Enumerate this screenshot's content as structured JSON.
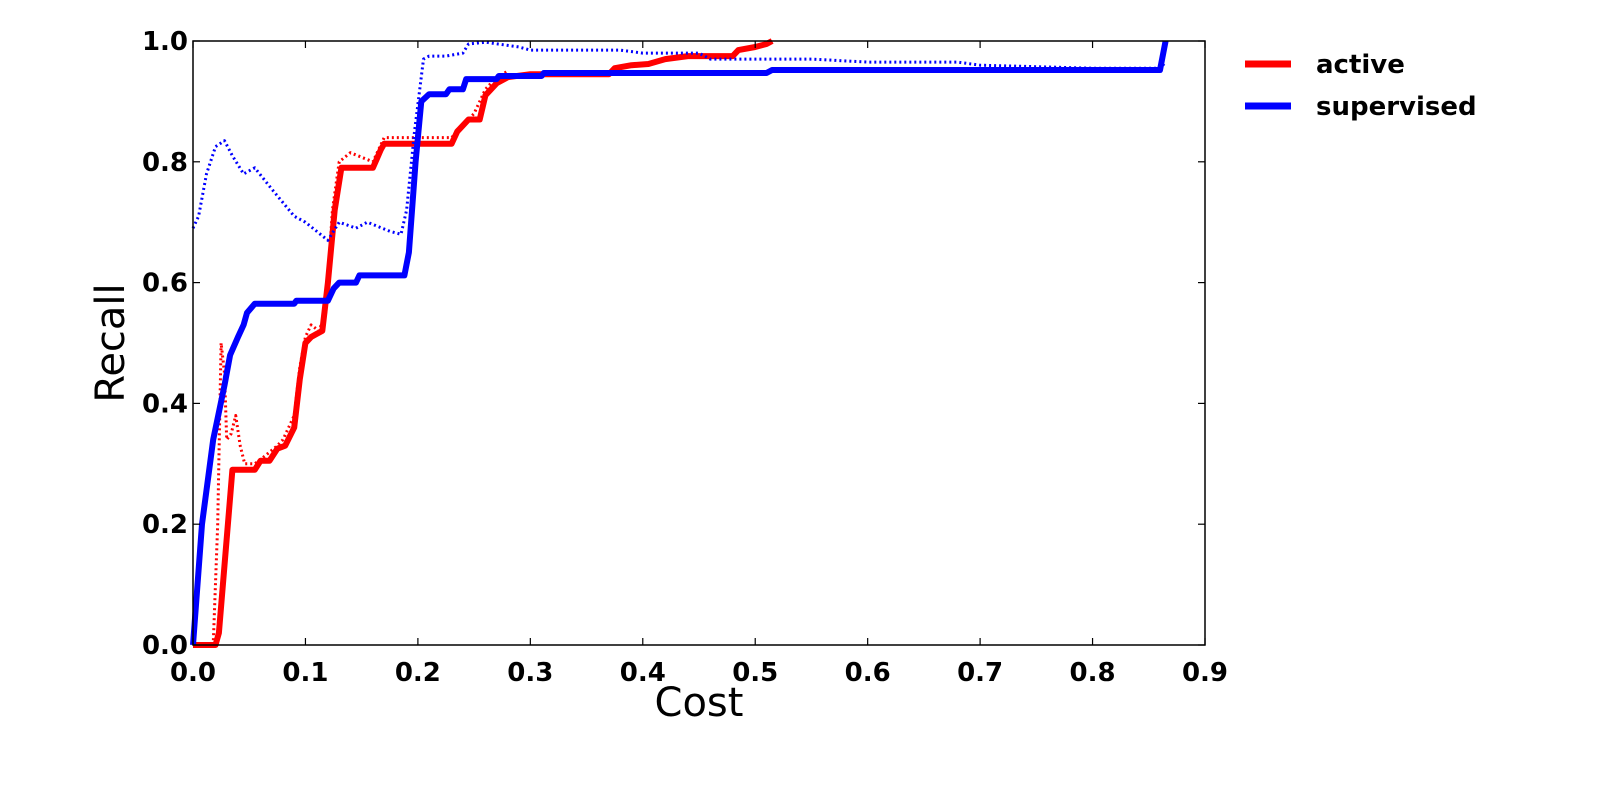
{
  "chart_data": {
    "type": "line",
    "title": "",
    "xlabel": "Cost",
    "ylabel": "Recall",
    "xlim": [
      0.0,
      0.9
    ],
    "ylim": [
      0.0,
      1.0
    ],
    "x_ticks": [
      "0.0",
      "0.1",
      "0.2",
      "0.3",
      "0.4",
      "0.5",
      "0.6",
      "0.7",
      "0.8",
      "0.9"
    ],
    "y_ticks": [
      "0.0",
      "0.2",
      "0.4",
      "0.6",
      "0.8",
      "1.0"
    ],
    "grid": false,
    "legend_position": "outside-top-right",
    "legend": [
      {
        "label": "active",
        "color": "#ff0000"
      },
      {
        "label": "supervised",
        "color": "#0000ff"
      }
    ],
    "series": [
      {
        "name": "active",
        "color": "#ff0000",
        "style": "solid",
        "points": [
          [
            0.0,
            0.0
          ],
          [
            0.02,
            0.0
          ],
          [
            0.023,
            0.02
          ],
          [
            0.035,
            0.29
          ],
          [
            0.055,
            0.29
          ],
          [
            0.06,
            0.305
          ],
          [
            0.068,
            0.305
          ],
          [
            0.075,
            0.325
          ],
          [
            0.082,
            0.33
          ],
          [
            0.09,
            0.36
          ],
          [
            0.095,
            0.44
          ],
          [
            0.1,
            0.5
          ],
          [
            0.105,
            0.51
          ],
          [
            0.11,
            0.515
          ],
          [
            0.115,
            0.52
          ],
          [
            0.12,
            0.6
          ],
          [
            0.126,
            0.72
          ],
          [
            0.132,
            0.79
          ],
          [
            0.16,
            0.79
          ],
          [
            0.167,
            0.82
          ],
          [
            0.17,
            0.83
          ],
          [
            0.23,
            0.83
          ],
          [
            0.235,
            0.85
          ],
          [
            0.245,
            0.87
          ],
          [
            0.255,
            0.87
          ],
          [
            0.26,
            0.91
          ],
          [
            0.265,
            0.92
          ],
          [
            0.27,
            0.93
          ],
          [
            0.28,
            0.94
          ],
          [
            0.3,
            0.945
          ],
          [
            0.37,
            0.945
          ],
          [
            0.375,
            0.955
          ],
          [
            0.39,
            0.96
          ],
          [
            0.405,
            0.962
          ],
          [
            0.42,
            0.97
          ],
          [
            0.44,
            0.975
          ],
          [
            0.48,
            0.975
          ],
          [
            0.485,
            0.985
          ],
          [
            0.5,
            0.99
          ],
          [
            0.51,
            0.995
          ],
          [
            0.515,
            1.0
          ]
        ]
      },
      {
        "name": "active",
        "color": "#ff0000",
        "style": "dotted",
        "points": [
          [
            0.0,
            0.0
          ],
          [
            0.018,
            0.0
          ],
          [
            0.022,
            0.2
          ],
          [
            0.025,
            0.5
          ],
          [
            0.028,
            0.45
          ],
          [
            0.03,
            0.34
          ],
          [
            0.034,
            0.35
          ],
          [
            0.038,
            0.38
          ],
          [
            0.042,
            0.33
          ],
          [
            0.046,
            0.3
          ],
          [
            0.055,
            0.3
          ],
          [
            0.062,
            0.31
          ],
          [
            0.075,
            0.33
          ],
          [
            0.08,
            0.34
          ],
          [
            0.09,
            0.38
          ],
          [
            0.095,
            0.46
          ],
          [
            0.1,
            0.51
          ],
          [
            0.105,
            0.53
          ],
          [
            0.112,
            0.52
          ],
          [
            0.118,
            0.55
          ],
          [
            0.124,
            0.72
          ],
          [
            0.13,
            0.8
          ],
          [
            0.14,
            0.815
          ],
          [
            0.16,
            0.8
          ],
          [
            0.17,
            0.84
          ],
          [
            0.2,
            0.84
          ],
          [
            0.23,
            0.84
          ],
          [
            0.24,
            0.86
          ],
          [
            0.25,
            0.88
          ],
          [
            0.26,
            0.92
          ],
          [
            0.27,
            0.94
          ],
          [
            0.28,
            0.95
          ]
        ]
      },
      {
        "name": "supervised",
        "color": "#0000ff",
        "style": "solid",
        "points": [
          [
            0.0,
            0.0
          ],
          [
            0.008,
            0.2
          ],
          [
            0.018,
            0.34
          ],
          [
            0.028,
            0.43
          ],
          [
            0.033,
            0.48
          ],
          [
            0.04,
            0.51
          ],
          [
            0.045,
            0.53
          ],
          [
            0.048,
            0.55
          ],
          [
            0.055,
            0.565
          ],
          [
            0.09,
            0.565
          ],
          [
            0.092,
            0.57
          ],
          [
            0.12,
            0.57
          ],
          [
            0.125,
            0.59
          ],
          [
            0.13,
            0.6
          ],
          [
            0.145,
            0.6
          ],
          [
            0.148,
            0.612
          ],
          [
            0.188,
            0.612
          ],
          [
            0.192,
            0.65
          ],
          [
            0.198,
            0.8
          ],
          [
            0.203,
            0.9
          ],
          [
            0.21,
            0.912
          ],
          [
            0.225,
            0.912
          ],
          [
            0.228,
            0.92
          ],
          [
            0.24,
            0.92
          ],
          [
            0.243,
            0.937
          ],
          [
            0.27,
            0.937
          ],
          [
            0.272,
            0.942
          ],
          [
            0.31,
            0.942
          ],
          [
            0.312,
            0.947
          ],
          [
            0.51,
            0.947
          ],
          [
            0.515,
            0.952
          ],
          [
            0.86,
            0.952
          ],
          [
            0.865,
            1.0
          ]
        ]
      },
      {
        "name": "supervised",
        "color": "#0000ff",
        "style": "dotted",
        "points": [
          [
            0.0,
            0.69
          ],
          [
            0.005,
            0.71
          ],
          [
            0.012,
            0.78
          ],
          [
            0.02,
            0.825
          ],
          [
            0.028,
            0.835
          ],
          [
            0.035,
            0.81
          ],
          [
            0.045,
            0.78
          ],
          [
            0.055,
            0.79
          ],
          [
            0.07,
            0.755
          ],
          [
            0.09,
            0.71
          ],
          [
            0.1,
            0.7
          ],
          [
            0.12,
            0.67
          ],
          [
            0.13,
            0.7
          ],
          [
            0.145,
            0.69
          ],
          [
            0.155,
            0.7
          ],
          [
            0.175,
            0.685
          ],
          [
            0.185,
            0.68
          ],
          [
            0.19,
            0.72
          ],
          [
            0.197,
            0.85
          ],
          [
            0.205,
            0.97
          ],
          [
            0.21,
            0.975
          ],
          [
            0.225,
            0.975
          ],
          [
            0.24,
            0.98
          ],
          [
            0.245,
            0.995
          ],
          [
            0.26,
            0.998
          ],
          [
            0.29,
            0.99
          ],
          [
            0.3,
            0.985
          ],
          [
            0.38,
            0.985
          ],
          [
            0.4,
            0.98
          ],
          [
            0.45,
            0.98
          ],
          [
            0.46,
            0.97
          ],
          [
            0.55,
            0.97
          ],
          [
            0.6,
            0.965
          ],
          [
            0.68,
            0.965
          ],
          [
            0.7,
            0.96
          ],
          [
            0.8,
            0.955
          ],
          [
            0.86,
            0.955
          ],
          [
            0.865,
            0.965
          ]
        ]
      }
    ]
  }
}
